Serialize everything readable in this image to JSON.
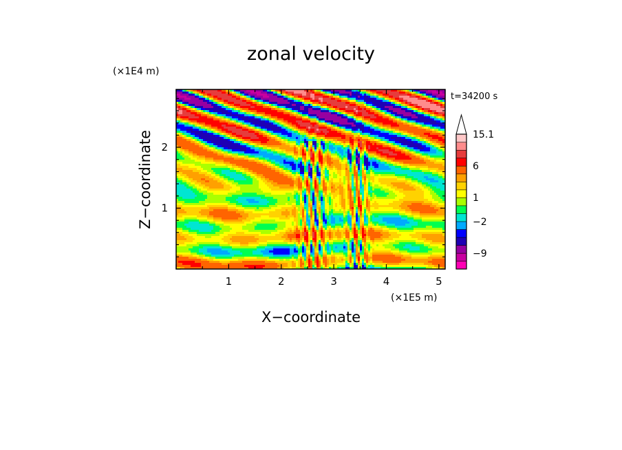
{
  "chart_data": {
    "type": "heatmap",
    "title": "zonal velocity",
    "xlabel": "X−coordinate",
    "ylabel": "Z−coordinate",
    "x_unit": "(×1E5 m)",
    "y_unit": "(×1E4 m)",
    "time_label": "t=34200 s",
    "xlim": [
      0,
      5.12
    ],
    "ylim": [
      0,
      2.95
    ],
    "x_ticks": [
      {
        "value": 1,
        "label": "1"
      },
      {
        "value": 2,
        "label": "2"
      },
      {
        "value": 3,
        "label": "3"
      },
      {
        "value": 4,
        "label": "4"
      },
      {
        "value": 5,
        "label": "5"
      }
    ],
    "y_ticks": [
      {
        "value": 1,
        "label": "1"
      },
      {
        "value": 2,
        "label": "2"
      }
    ],
    "colorbar": {
      "levels": [
        -15,
        -12,
        -9,
        -6,
        -4,
        -3,
        -2,
        -1,
        0,
        1,
        2,
        3,
        4,
        6,
        8,
        10,
        12.5,
        15.1
      ],
      "colors": [
        "#ff00b4",
        "#c800a0",
        "#9600a0",
        "#1e00b4",
        "#0000ff",
        "#00aaff",
        "#00e6d2",
        "#00ff50",
        "#aaff00",
        "#ffff00",
        "#ffd200",
        "#ffa000",
        "#ff6400",
        "#ff0000",
        "#e63c3c",
        "#ff8c8c",
        "#ffc8c8"
      ],
      "labels": [
        {
          "value": 15.1,
          "label": "15.1"
        },
        {
          "value": 6,
          "label": "6"
        },
        {
          "value": 1,
          "label": "1"
        },
        {
          "value": -2,
          "label": "−2"
        },
        {
          "value": -9,
          "label": "−9"
        }
      ],
      "extend": "max"
    },
    "grid": false
  }
}
